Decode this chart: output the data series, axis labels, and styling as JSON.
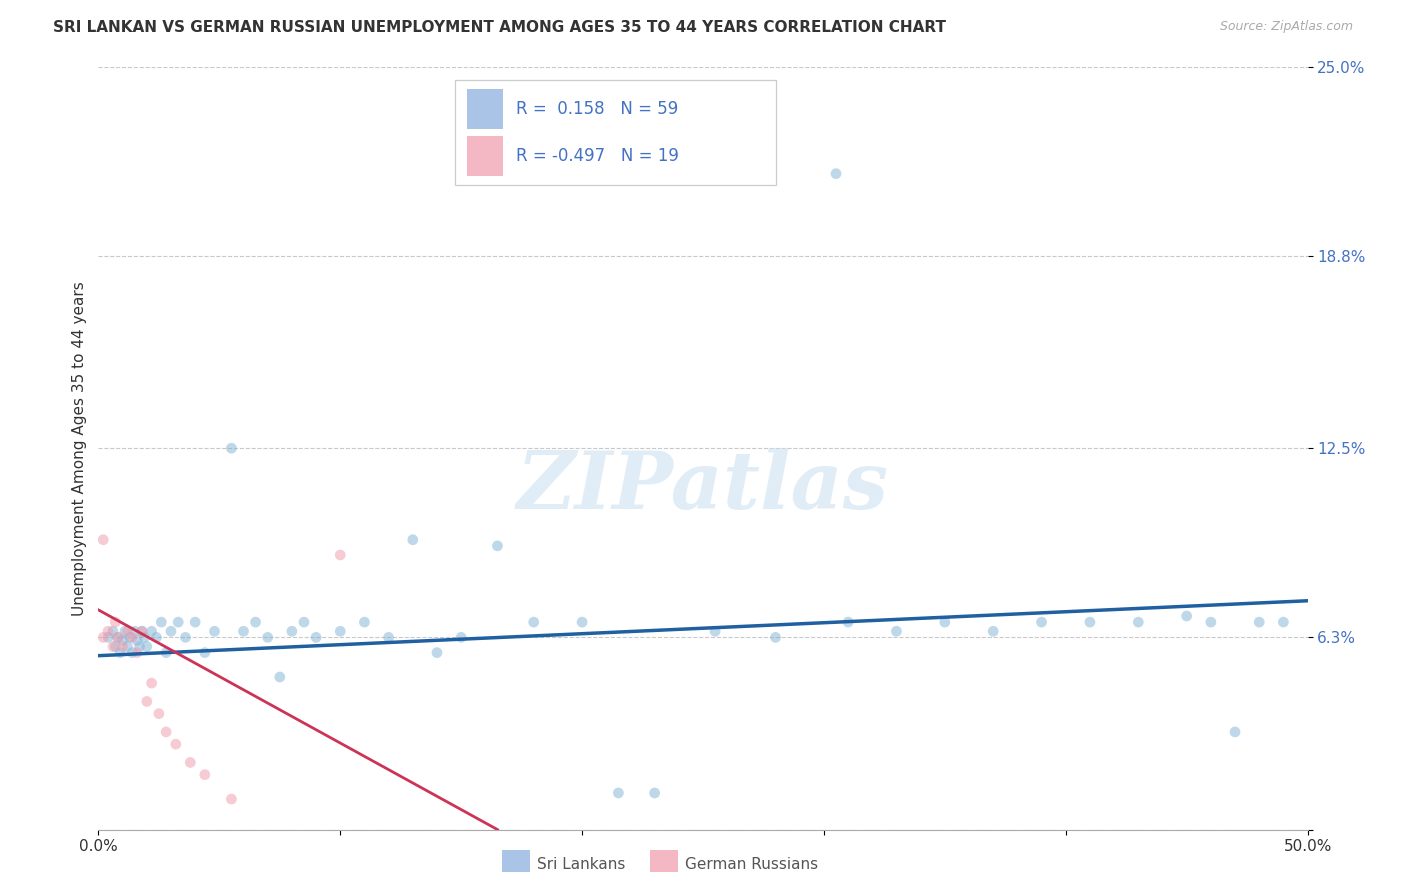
{
  "title": "SRI LANKAN VS GERMAN RUSSIAN UNEMPLOYMENT AMONG AGES 35 TO 44 YEARS CORRELATION CHART",
  "source": "Source: ZipAtlas.com",
  "ylabel": "Unemployment Among Ages 35 to 44 years",
  "xlim": [
    0.0,
    0.5
  ],
  "ylim": [
    0.0,
    0.25
  ],
  "xticks": [
    0.0,
    0.1,
    0.2,
    0.3,
    0.4,
    0.5
  ],
  "xticklabels": [
    "0.0%",
    "",
    "",
    "",
    "",
    "50.0%"
  ],
  "ytick_positions": [
    0.0,
    0.063,
    0.125,
    0.188,
    0.25
  ],
  "ytick_labels": [
    "",
    "6.3%",
    "12.5%",
    "18.8%",
    "25.0%"
  ],
  "watermark": "ZIPatlas",
  "R_sl": 0.158,
  "N_sl": 59,
  "R_gr": -0.497,
  "N_gr": 19,
  "sl_color": "#7fb3d6",
  "gr_color": "#f099aa",
  "sl_legend_color": "#aac4e8",
  "gr_legend_color": "#f4b8c4",
  "blue_line_color": "#2060a0",
  "pink_line_color": "#cc3355",
  "background_color": "#ffffff",
  "grid_color": "#bbbbbb",
  "sl_x": [
    0.004,
    0.006,
    0.007,
    0.008,
    0.009,
    0.01,
    0.011,
    0.012,
    0.013,
    0.014,
    0.015,
    0.016,
    0.017,
    0.018,
    0.019,
    0.02,
    0.022,
    0.024,
    0.026,
    0.028,
    0.03,
    0.033,
    0.036,
    0.04,
    0.044,
    0.048,
    0.055,
    0.06,
    0.065,
    0.07,
    0.075,
    0.08,
    0.085,
    0.09,
    0.1,
    0.11,
    0.12,
    0.13,
    0.14,
    0.15,
    0.165,
    0.18,
    0.2,
    0.215,
    0.23,
    0.255,
    0.28,
    0.31,
    0.33,
    0.35,
    0.37,
    0.39,
    0.41,
    0.43,
    0.45,
    0.46,
    0.47,
    0.48,
    0.49
  ],
  "sl_y": [
    0.063,
    0.065,
    0.06,
    0.063,
    0.058,
    0.062,
    0.065,
    0.06,
    0.063,
    0.058,
    0.065,
    0.062,
    0.06,
    0.065,
    0.063,
    0.06,
    0.065,
    0.063,
    0.068,
    0.058,
    0.065,
    0.068,
    0.063,
    0.068,
    0.058,
    0.065,
    0.125,
    0.065,
    0.068,
    0.063,
    0.05,
    0.065,
    0.068,
    0.063,
    0.065,
    0.068,
    0.063,
    0.095,
    0.058,
    0.063,
    0.093,
    0.068,
    0.068,
    0.012,
    0.012,
    0.065,
    0.063,
    0.068,
    0.065,
    0.068,
    0.065,
    0.068,
    0.068,
    0.068,
    0.07,
    0.068,
    0.032,
    0.068,
    0.068
  ],
  "sl_outlier_x": [
    0.305
  ],
  "sl_outlier_y": [
    0.215
  ],
  "gr_x": [
    0.002,
    0.004,
    0.006,
    0.007,
    0.008,
    0.01,
    0.012,
    0.014,
    0.016,
    0.018,
    0.02,
    0.022,
    0.025,
    0.028,
    0.032,
    0.038,
    0.044,
    0.055,
    0.1
  ],
  "gr_y": [
    0.063,
    0.065,
    0.06,
    0.068,
    0.063,
    0.06,
    0.065,
    0.063,
    0.058,
    0.065,
    0.042,
    0.048,
    0.038,
    0.032,
    0.028,
    0.022,
    0.018,
    0.01,
    0.09
  ],
  "gr_outlier_x": [
    0.002
  ],
  "gr_outlier_y": [
    0.095
  ],
  "blue_trend_x": [
    0.0,
    0.5
  ],
  "blue_trend_y": [
    0.057,
    0.075
  ],
  "pink_trend_x": [
    0.0,
    0.165
  ],
  "pink_trend_y": [
    0.072,
    0.0
  ],
  "scatter_size": 60,
  "scatter_alpha": 0.5
}
